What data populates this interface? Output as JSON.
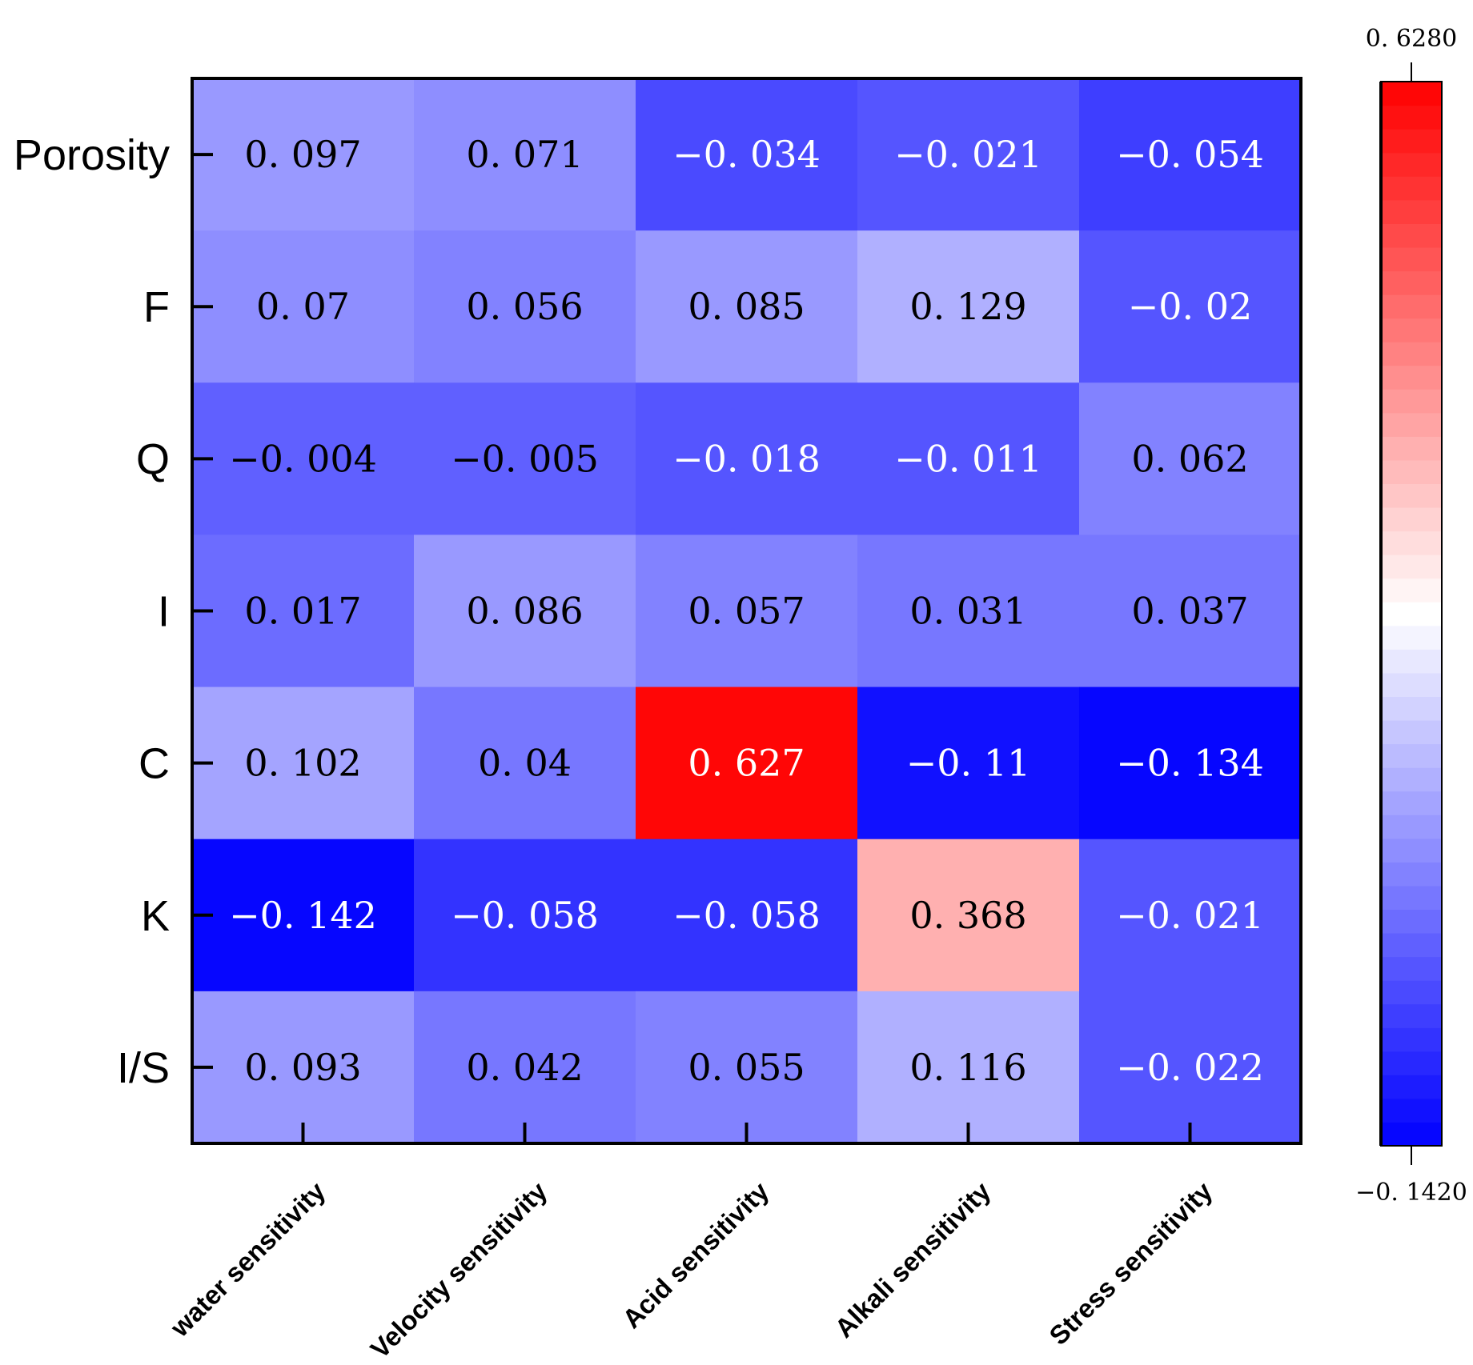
{
  "chart_data": {
    "type": "heatmap",
    "title": "",
    "rows": [
      "Porosity",
      "F",
      "Q",
      "I",
      "C",
      "K",
      "I/S"
    ],
    "columns": [
      "water sensitivity",
      "Velocity sensitivity",
      "Acid sensitivity",
      "Alkali sensitivity",
      "Stress sensitivity"
    ],
    "values": [
      [
        0.097,
        0.071,
        -0.034,
        -0.021,
        -0.054
      ],
      [
        0.07,
        0.056,
        0.085,
        0.129,
        -0.02
      ],
      [
        -0.004,
        -0.005,
        -0.018,
        -0.011,
        0.062
      ],
      [
        0.017,
        0.086,
        0.057,
        0.031,
        0.037
      ],
      [
        0.102,
        0.04,
        0.627,
        -0.11,
        -0.134
      ],
      [
        -0.142,
        -0.058,
        -0.058,
        0.368,
        -0.021
      ],
      [
        0.093,
        0.042,
        0.055,
        0.116,
        -0.022
      ]
    ],
    "value_labels": [
      [
        "0. 097",
        "0. 071",
        "−0. 034",
        "−0. 021",
        "−0. 054"
      ],
      [
        "0. 07",
        "0. 056",
        "0. 085",
        "0. 129",
        "−0. 02"
      ],
      [
        "−0. 004",
        "−0. 005",
        "−0. 018",
        "−0. 011",
        "0. 062"
      ],
      [
        "0. 017",
        "0. 086",
        "0. 057",
        "0. 031",
        "0. 037"
      ],
      [
        "0. 102",
        "0. 04",
        "0. 627",
        "−0. 11",
        "−0. 134"
      ],
      [
        "−0. 142",
        "−0. 058",
        "−0. 058",
        "0. 368",
        "−0. 021"
      ],
      [
        "0. 093",
        "0. 042",
        "0. 055",
        "0. 116",
        "−0. 022"
      ]
    ],
    "colorbar": {
      "min": -0.142,
      "max": 0.628,
      "min_label": "−0. 1420",
      "max_label": "0. 6280",
      "levels": 45,
      "colormap": [
        "#0000ff",
        "#ffffff",
        "#ff0000"
      ]
    }
  }
}
